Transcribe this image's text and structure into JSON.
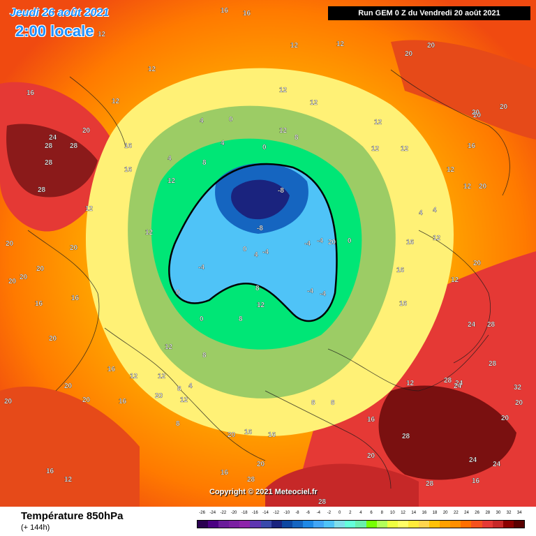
{
  "header": {
    "date": "Jeudi 26 août 2021",
    "local_time": "2:00 locale",
    "run_info": "Run GEM 0 Z du Vendredi 20 août 2021"
  },
  "map": {
    "copyright": "Copyright © 2021 Meteociel.fr",
    "contour_labels": [
      {
        "t": "16"
      },
      {
        "t": "16"
      },
      {
        "t": "16"
      },
      {
        "t": "12"
      },
      {
        "t": "12"
      },
      {
        "t": "20"
      },
      {
        "t": "20"
      },
      {
        "t": "24"
      },
      {
        "t": "28"
      },
      {
        "t": "28"
      },
      {
        "t": "28"
      },
      {
        "t": "28"
      },
      {
        "t": "20"
      },
      {
        "t": "20"
      },
      {
        "t": "20"
      },
      {
        "t": "20"
      },
      {
        "t": "20"
      },
      {
        "t": "20"
      },
      {
        "t": "16"
      },
      {
        "t": "16"
      },
      {
        "t": "20"
      },
      {
        "t": "16"
      },
      {
        "t": "16"
      },
      {
        "t": "12"
      },
      {
        "t": "12"
      },
      {
        "t": "12"
      },
      {
        "t": "12"
      },
      {
        "t": "12"
      },
      {
        "t": "12"
      },
      {
        "t": "12"
      },
      {
        "t": "12"
      },
      {
        "t": "12"
      },
      {
        "t": "20"
      },
      {
        "t": "20"
      },
      {
        "t": "16"
      },
      {
        "t": "16"
      },
      {
        "t": "12"
      },
      {
        "t": "12"
      },
      {
        "t": "12"
      },
      {
        "t": "12"
      },
      {
        "t": "4"
      },
      {
        "t": "4"
      },
      {
        "t": "4"
      },
      {
        "t": "8"
      },
      {
        "t": "8"
      },
      {
        "t": "0"
      },
      {
        "t": "0"
      },
      {
        "t": "0"
      },
      {
        "t": "-8"
      },
      {
        "t": "-8"
      },
      {
        "t": "-4"
      },
      {
        "t": "-4"
      },
      {
        "t": "-4"
      },
      {
        "t": "-4"
      },
      {
        "t": "-4"
      },
      {
        "t": "-4"
      },
      {
        "t": "0"
      },
      {
        "t": "0"
      },
      {
        "t": "0"
      },
      {
        "t": "4"
      },
      {
        "t": "4"
      },
      {
        "t": "4"
      },
      {
        "t": "4"
      },
      {
        "t": "8"
      },
      {
        "t": "8"
      },
      {
        "t": "8"
      },
      {
        "t": "8"
      },
      {
        "t": "8"
      },
      {
        "t": "12"
      },
      {
        "t": "12"
      },
      {
        "t": "12"
      },
      {
        "t": "16"
      },
      {
        "t": "16"
      },
      {
        "t": "16"
      },
      {
        "t": "16"
      },
      {
        "t": "20"
      },
      {
        "t": "20"
      },
      {
        "t": "20"
      },
      {
        "t": "20"
      },
      {
        "t": "20"
      },
      {
        "t": "20"
      },
      {
        "t": "24"
      },
      {
        "t": "24"
      },
      {
        "t": "24"
      },
      {
        "t": "28"
      },
      {
        "t": "28"
      },
      {
        "t": "28"
      },
      {
        "t": "28"
      },
      {
        "t": "28"
      },
      {
        "t": "28"
      },
      {
        "t": "32"
      },
      {
        "t": "20"
      },
      {
        "t": "20"
      },
      {
        "t": "20"
      },
      {
        "t": "16"
      },
      {
        "t": "16"
      },
      {
        "t": "16"
      },
      {
        "t": "12"
      },
      {
        "t": "12"
      },
      {
        "t": "12"
      },
      {
        "t": "20"
      },
      {
        "t": "20"
      },
      {
        "t": "28"
      },
      {
        "t": "24"
      },
      {
        "t": "24"
      },
      {
        "t": "16"
      },
      {
        "t": "16"
      },
      {
        "t": "12"
      },
      {
        "t": "12"
      },
      {
        "t": "8"
      },
      {
        "t": "8"
      },
      {
        "t": "20"
      },
      {
        "t": "16"
      },
      {
        "t": "12"
      },
      {
        "t": "12"
      },
      {
        "t": "20"
      }
    ]
  },
  "footer": {
    "variable": "Température 850hPa",
    "lead_time": "(+ 144h)"
  },
  "legend": {
    "labels": [
      "-26",
      "-24",
      "-22",
      "-20",
      "-18",
      "-16",
      "-14",
      "-12",
      "-10",
      "-8",
      "-6",
      "-4",
      "-2",
      "0",
      "2",
      "4",
      "6",
      "8",
      "10",
      "12",
      "14",
      "16",
      "18",
      "20",
      "22",
      "24",
      "26",
      "28",
      "30",
      "32",
      "34"
    ],
    "colors": [
      "#2a0050",
      "#4b0082",
      "#6a1b9a",
      "#7b1fa2",
      "#8e24aa",
      "#5e35b1",
      "#3949ab",
      "#1a237e",
      "#0d47a1",
      "#1565c0",
      "#1e88e5",
      "#42a5f5",
      "#4fc3f7",
      "#80deea",
      "#64ffda",
      "#69f0ae",
      "#76ff03",
      "#b2ff59",
      "#eeff41",
      "#ffff66",
      "#ffeb3b",
      "#ffd54f",
      "#ffc107",
      "#ffa000",
      "#ff8f00",
      "#ff6f00",
      "#f4511e",
      "#e53935",
      "#c62828",
      "#8b0000",
      "#5a0000"
    ]
  }
}
